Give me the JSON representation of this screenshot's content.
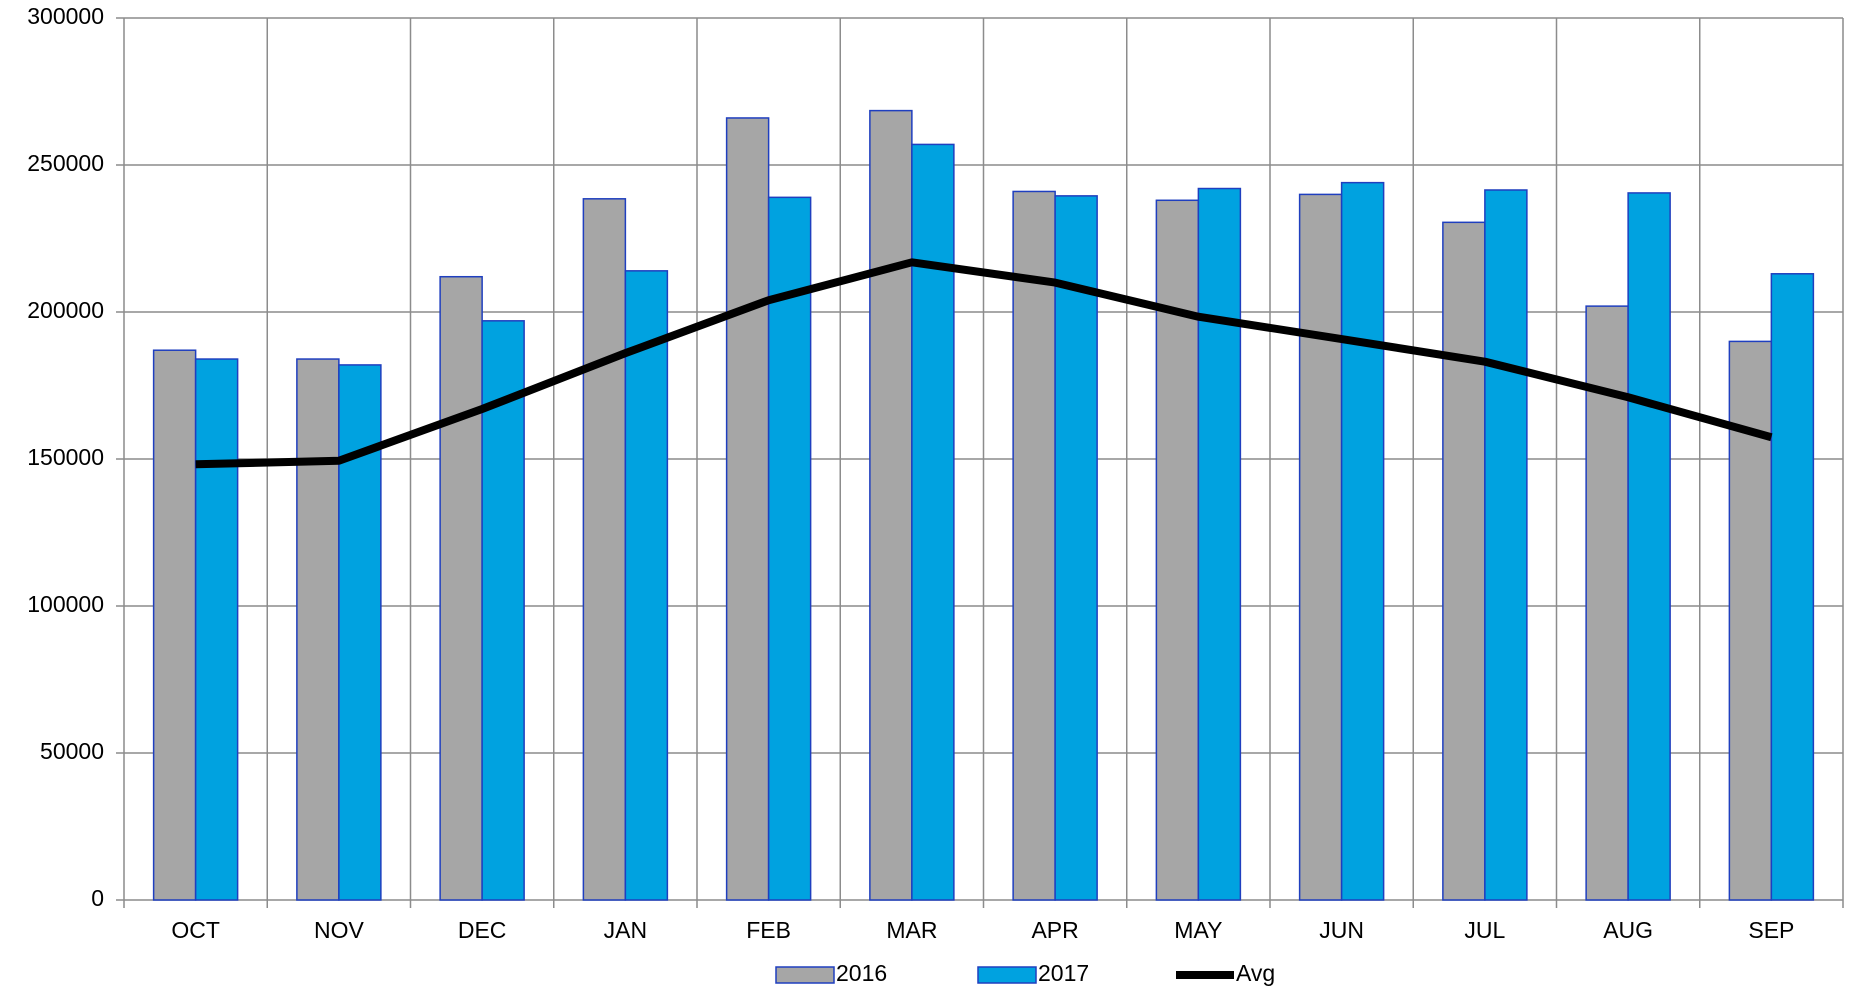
{
  "chart_data": {
    "type": "bar",
    "categories": [
      "OCT",
      "NOV",
      "DEC",
      "JAN",
      "FEB",
      "MAR",
      "APR",
      "MAY",
      "JUN",
      "JUL",
      "AUG",
      "SEP"
    ],
    "series": [
      {
        "name": "2016",
        "type": "bar",
        "color": "#a6a6a6",
        "values": [
          187000,
          184000,
          212000,
          238500,
          266000,
          268500,
          241000,
          238000,
          240000,
          230500,
          202000,
          190000
        ]
      },
      {
        "name": "2017",
        "type": "bar",
        "color": "#00a2e0",
        "values": [
          184000,
          182000,
          197000,
          214000,
          239000,
          257000,
          239500,
          242000,
          244000,
          241500,
          240500,
          213000
        ]
      },
      {
        "name": "Avg",
        "type": "line",
        "color": "#000000",
        "values": [
          148200,
          149400,
          167000,
          186000,
          204000,
          216900,
          210000,
          198400,
          190800,
          183100,
          171000,
          157400
        ]
      }
    ],
    "ylim": [
      0,
      300000
    ],
    "yticks": [
      0,
      50000,
      100000,
      150000,
      200000,
      250000,
      300000
    ],
    "grid": true,
    "legend": "bottom"
  }
}
